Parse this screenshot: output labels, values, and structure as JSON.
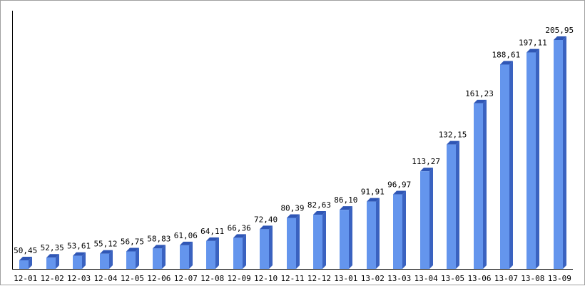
{
  "chart_data": {
    "type": "bar",
    "categories": [
      "12-01",
      "12-02",
      "12-03",
      "12-04",
      "12-05",
      "12-06",
      "12-07",
      "12-08",
      "12-09",
      "12-10",
      "12-11",
      "12-12",
      "13-01",
      "13-02",
      "13-03",
      "13-04",
      "13-05",
      "13-06",
      "13-07",
      "13-08",
      "13-09"
    ],
    "values": [
      50.45,
      52.35,
      53.61,
      55.12,
      56.75,
      58.83,
      61.06,
      64.11,
      66.36,
      72.4,
      80.39,
      82.63,
      86.1,
      91.91,
      96.97,
      113.27,
      132.15,
      161.23,
      188.61,
      197.11,
      205.95
    ],
    "value_labels": [
      "50,45",
      "52,35",
      "53,61",
      "55,12",
      "56,75",
      "58,83",
      "61,06",
      "64,11",
      "66,36",
      "72,40",
      "80,39",
      "82,63",
      "86,10",
      "91,91",
      "96,97",
      "113,27",
      "132,15",
      "161,23",
      "188,61",
      "197,11",
      "205,95"
    ],
    "title": "",
    "xlabel": "",
    "ylabel": "",
    "ylim": [
      45,
      210
    ],
    "grid": false,
    "legend": "none",
    "colors": {
      "bar_front": "#6495ed",
      "bar_side": "#3a62c0",
      "bar_top": "#2f56b5",
      "axis": "#000000",
      "frame": "#a0a0a0"
    }
  }
}
